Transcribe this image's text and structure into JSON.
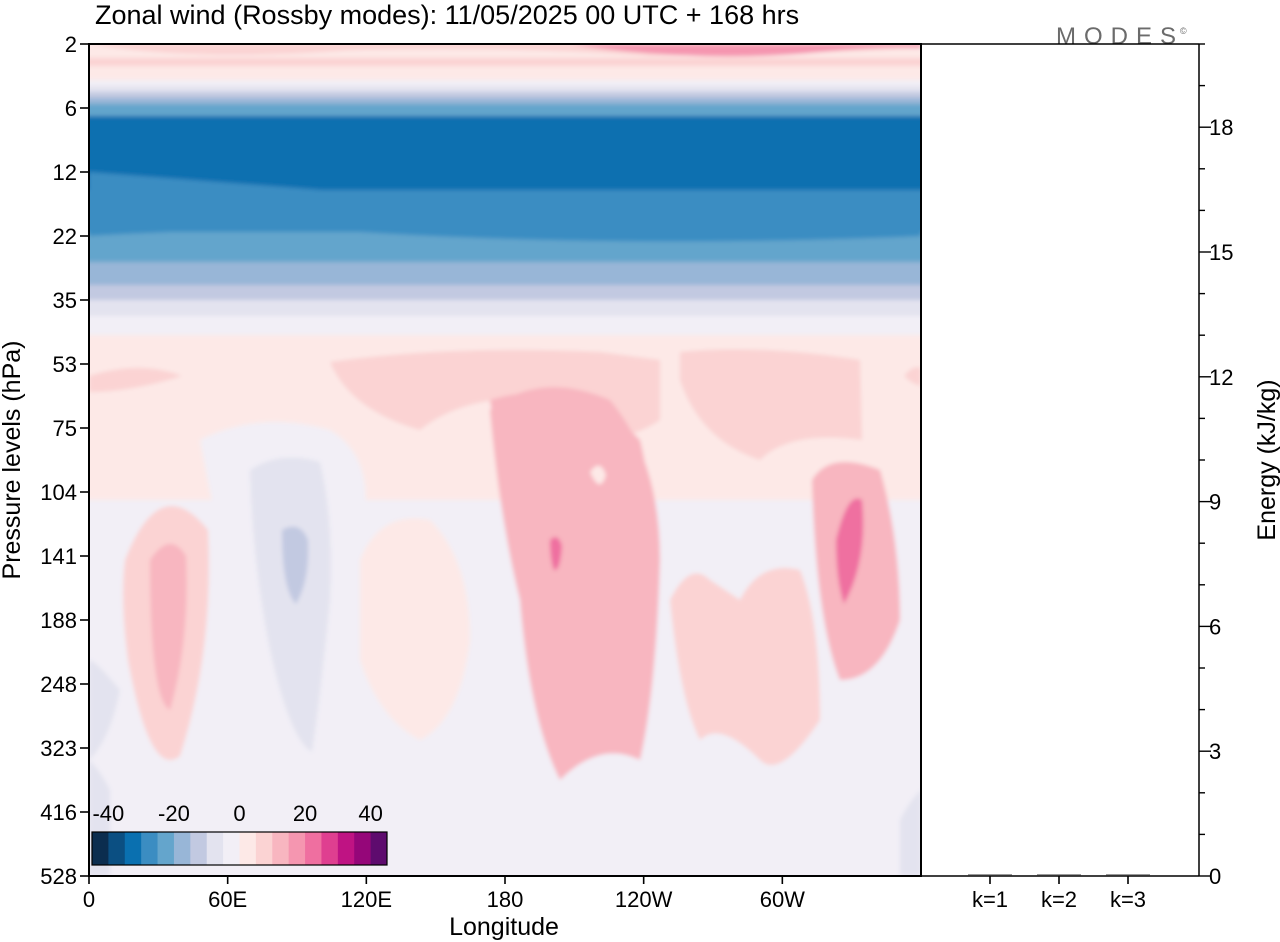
{
  "chart_data": [
    {
      "type": "heatmap",
      "title": "Zonal wind (Rossby modes):  11/05/2025  00 UTC  + 168 hrs",
      "watermark": "MODES",
      "watermark_mark": "©",
      "xlabel": "Longitude",
      "ylabel": "Pressure levels (hPa)",
      "x_ticks": [
        "0",
        "60E",
        "120E",
        "180",
        "120W",
        "60W"
      ],
      "x_tick_degrees_east": [
        0,
        60,
        120,
        180,
        240,
        300
      ],
      "xlim_degrees_east": [
        0,
        360
      ],
      "y_ticks": [
        "2",
        "6",
        "12",
        "22",
        "35",
        "53",
        "75",
        "104",
        "141",
        "188",
        "248",
        "323",
        "416",
        "528"
      ],
      "colorbar": {
        "tick_labels": [
          "-40",
          "-20",
          "0",
          "20",
          "40"
        ],
        "tick_values": [
          -40,
          -20,
          0,
          20,
          40
        ],
        "bins": [
          {
            "min": -45,
            "max": -40,
            "color": "#0b2d4f"
          },
          {
            "min": -40,
            "max": -35,
            "color": "#0b4f82"
          },
          {
            "min": -35,
            "max": -30,
            "color": "#0a70b0"
          },
          {
            "min": -30,
            "max": -25,
            "color": "#3b8dc2"
          },
          {
            "min": -25,
            "max": -20,
            "color": "#64a5cc"
          },
          {
            "min": -20,
            "max": -15,
            "color": "#98b6d7"
          },
          {
            "min": -15,
            "max": -10,
            "color": "#c2c9e1"
          },
          {
            "min": -10,
            "max": -5,
            "color": "#e3e3ef"
          },
          {
            "min": -5,
            "max": 0,
            "color": "#f2eff6"
          },
          {
            "min": 0,
            "max": 5,
            "color": "#fde9e7"
          },
          {
            "min": 5,
            "max": 10,
            "color": "#fbd3d3"
          },
          {
            "min": 10,
            "max": 15,
            "color": "#f8b6c0"
          },
          {
            "min": 15,
            "max": 20,
            "color": "#f596b0"
          },
          {
            "min": 20,
            "max": 25,
            "color": "#ef6fa0"
          },
          {
            "min": 25,
            "max": 30,
            "color": "#df3f90"
          },
          {
            "min": 30,
            "max": 35,
            "color": "#bf1383"
          },
          {
            "min": 35,
            "max": 40,
            "color": "#950679"
          },
          {
            "min": 40,
            "max": 45,
            "color": "#5e0b6e"
          }
        ]
      }
    },
    {
      "type": "bar",
      "ylabel": "Energy (kJ/kg)",
      "categories": [
        "k=1",
        "k=2",
        "k=3"
      ],
      "values": [
        0.03,
        0.03,
        0.02
      ],
      "ylim": [
        0,
        20
      ],
      "y_ticks": [
        "0",
        "3",
        "6",
        "9",
        "12",
        "15",
        "18"
      ],
      "y_tick_values": [
        0,
        3,
        6,
        9,
        12,
        15,
        18
      ]
    }
  ]
}
